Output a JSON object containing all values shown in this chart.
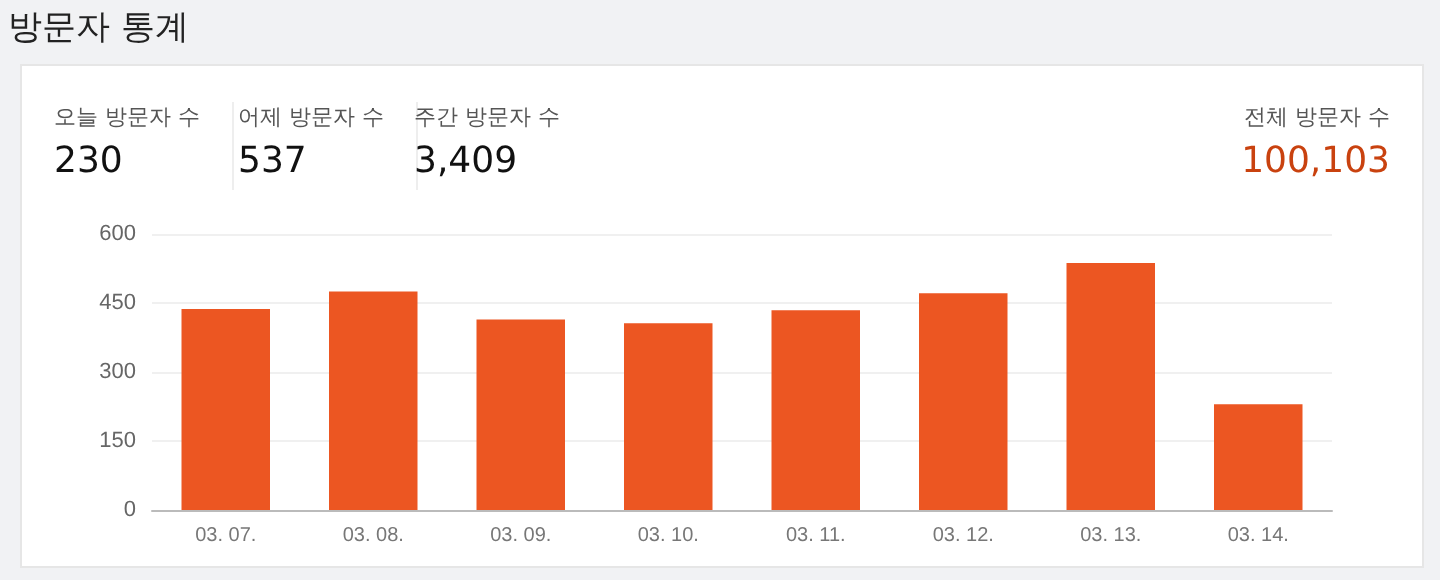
{
  "chart_data": {
    "type": "bar",
    "title": "방문자 통계",
    "annotations": [
      "오늘 방문자 수",
      "230",
      "어제 방문자 수",
      "537",
      "주간 방문자 수",
      "3,409",
      "전체 방문자 수",
      "100,103"
    ],
    "categories": [
      "03. 07.",
      "03. 08.",
      "03. 09.",
      "03. 10.",
      "03. 11.",
      "03. 12.",
      "03. 13.",
      "03. 14."
    ],
    "values": [
      437,
      475,
      414,
      406,
      434,
      471,
      537,
      230
    ],
    "color": "#ec5622",
    "ylim": [
      0,
      600
    ],
    "yticks": [
      0,
      150,
      300,
      450,
      600
    ],
    "grid": "y"
  }
}
